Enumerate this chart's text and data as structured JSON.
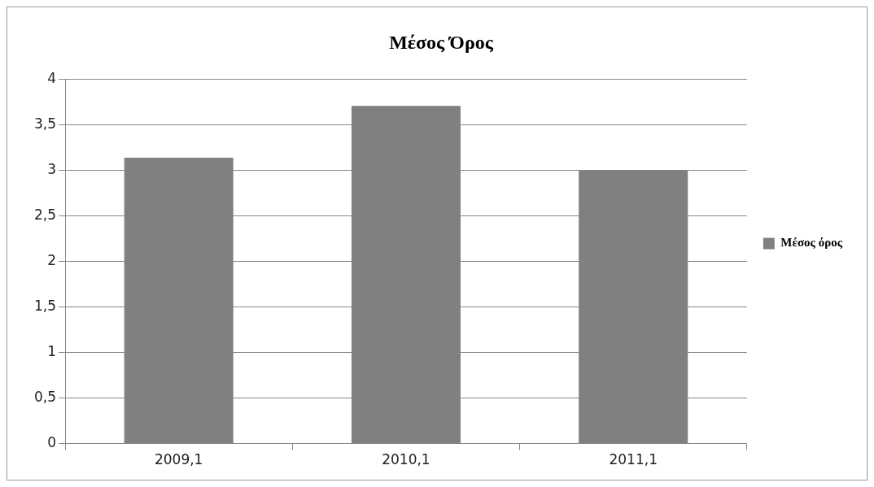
{
  "chart_data": {
    "type": "bar",
    "title": "Μέσος Όρος",
    "categories": [
      "2009,1",
      "2010,1",
      "2011,1"
    ],
    "series": [
      {
        "name": "Μέσος όρος",
        "color": "#808080",
        "values": [
          3.14,
          3.71,
          3.0
        ]
      }
    ],
    "ylim": [
      0,
      4
    ],
    "yticks": [
      0,
      {
        "value": 0.5,
        "label": "0,5"
      },
      1,
      {
        "value": 1.5,
        "label": "1,5"
      },
      2,
      {
        "value": 2.5,
        "label": "2,5"
      },
      3,
      {
        "value": 3.5,
        "label": "3,5"
      },
      4
    ],
    "grid": "y",
    "legend": "right"
  }
}
